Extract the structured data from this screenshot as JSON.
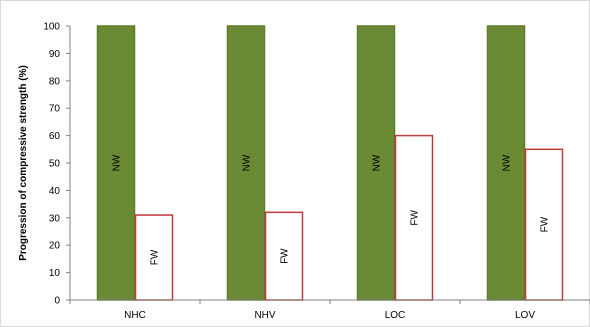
{
  "chart_data": {
    "type": "bar",
    "title": "",
    "xlabel": "",
    "ylabel": "Progression of compressive strength (%)",
    "ylim": [
      0,
      100
    ],
    "yticks": [
      0,
      10,
      20,
      30,
      40,
      50,
      60,
      70,
      80,
      90,
      100
    ],
    "categories": [
      "NHC",
      "NHV",
      "LOC",
      "LOV"
    ],
    "series": [
      {
        "values": [
          100,
          100,
          100,
          100
        ],
        "bar_label": "NW",
        "fill": "#6b8a34",
        "stroke": "#5e7a2c"
      },
      {
        "values": [
          31,
          32,
          60,
          55
        ],
        "bar_label": "FW",
        "fill": "#ffffff",
        "stroke": "#c0393b"
      }
    ],
    "grid": false,
    "legend": "none"
  }
}
